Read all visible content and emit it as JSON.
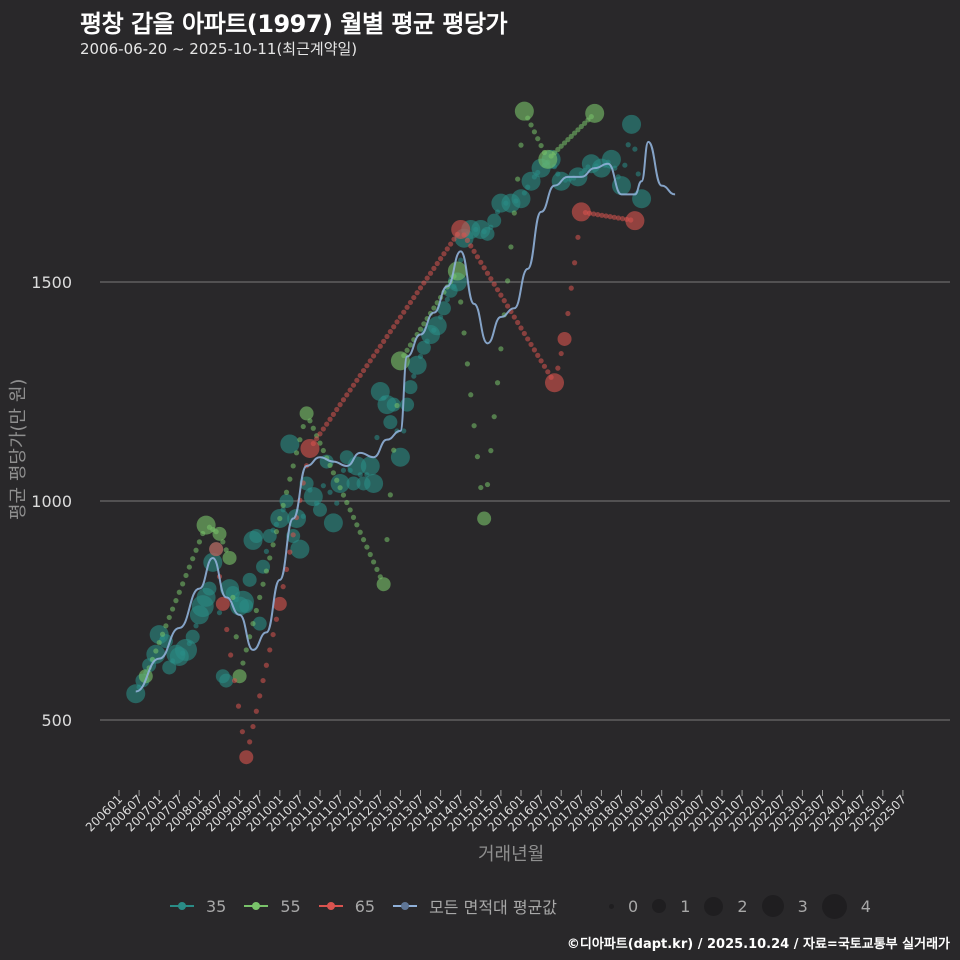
{
  "header": {
    "title": "평창 갑을 아파트(1997) 월별 평균 평당가",
    "subtitle": "2006-06-20 ~ 2025-10-11(최근계약일)"
  },
  "axes": {
    "ylabel": "평균 평당가(만 원)",
    "xlabel": "거래년월"
  },
  "legend": {
    "series": [
      {
        "label": "35",
        "color": "#2a8c86"
      },
      {
        "label": "55",
        "color": "#79c36a"
      },
      {
        "label": "65",
        "color": "#d9534f"
      },
      {
        "label": "모든 면적대 평균값",
        "color": "#8fb0d8"
      }
    ],
    "sizes": [
      {
        "label": "0",
        "d": 6
      },
      {
        "label": "1",
        "d": 14
      },
      {
        "label": "2",
        "d": 19
      },
      {
        "label": "3",
        "d": 22
      },
      {
        "label": "4",
        "d": 25
      }
    ]
  },
  "credit": "©디아파트(dapt.kr) / 2025.10.24 / 자료=국토교통부 실거래가",
  "chart_data": {
    "type": "scatter",
    "title": "평창 갑을 아파트(1997) 월별 평균 평당가",
    "subtitle": "2006-06-20 ~ 2025-10-11(최근계약일)",
    "xlabel": "거래년월",
    "ylabel": "평균 평당가(만 원)",
    "x_ticks": [
      "200601",
      "200607",
      "200701",
      "200707",
      "200801",
      "200807",
      "200901",
      "200907",
      "201001",
      "201007",
      "201101",
      "201107",
      "201201",
      "201207",
      "201301",
      "201307",
      "201401",
      "201407",
      "201501",
      "201507",
      "201601",
      "201607",
      "201701",
      "201707",
      "201801",
      "201807",
      "201901",
      "201907",
      "202001",
      "202007",
      "202101",
      "202107",
      "202201",
      "202207",
      "202301",
      "202307",
      "202401",
      "202407",
      "202501",
      "202507"
    ],
    "y_ticks": [
      500,
      1000,
      1500
    ],
    "ylim": [
      340,
      1900
    ],
    "grid": "horizontal",
    "legend_position": "bottom",
    "series": [
      {
        "name": "35",
        "color": "#2a8c86",
        "points": [
          [
            "2006-06",
            560,
            2
          ],
          [
            "2006-08",
            590,
            1
          ],
          [
            "2006-10",
            625,
            1
          ],
          [
            "2006-12",
            650,
            2
          ],
          [
            "2007-01",
            695,
            2
          ],
          [
            "2007-03",
            680,
            1
          ],
          [
            "2007-04",
            620,
            1
          ],
          [
            "2007-06",
            650,
            2
          ],
          [
            "2007-07",
            645,
            2
          ],
          [
            "2007-09",
            660,
            3
          ],
          [
            "2007-11",
            690,
            1
          ],
          [
            "2008-01",
            740,
            2
          ],
          [
            "2008-02",
            760,
            3
          ],
          [
            "2008-03",
            780,
            2
          ],
          [
            "2008-04",
            800,
            1
          ],
          [
            "2008-05",
            860,
            2
          ],
          [
            "2008-06",
            890,
            1
          ],
          [
            "2008-08",
            600,
            1
          ],
          [
            "2008-09",
            590,
            1
          ],
          [
            "2008-10",
            800,
            2
          ],
          [
            "2008-11",
            790,
            1
          ],
          [
            "2009-01",
            760,
            2
          ],
          [
            "2009-02",
            770,
            3
          ],
          [
            "2009-03",
            760,
            1
          ],
          [
            "2009-04",
            820,
            1
          ],
          [
            "2009-05",
            910,
            2
          ],
          [
            "2009-06",
            920,
            1
          ],
          [
            "2009-07",
            720,
            1
          ],
          [
            "2009-08",
            850,
            1
          ],
          [
            "2009-10",
            920,
            1
          ],
          [
            "2010-01",
            960,
            2
          ],
          [
            "2010-03",
            1000,
            1
          ],
          [
            "2010-04",
            1130,
            2
          ],
          [
            "2010-05",
            920,
            1
          ],
          [
            "2010-06",
            960,
            2
          ],
          [
            "2010-07",
            890,
            2
          ],
          [
            "2010-09",
            1040,
            1
          ],
          [
            "2010-11",
            1010,
            2
          ],
          [
            "2011-01",
            980,
            1
          ],
          [
            "2011-03",
            1090,
            1
          ],
          [
            "2011-05",
            950,
            2
          ],
          [
            "2011-07",
            1040,
            2
          ],
          [
            "2011-09",
            1100,
            1
          ],
          [
            "2011-11",
            1040,
            1
          ],
          [
            "2011-12",
            1080,
            2
          ],
          [
            "2012-02",
            1040,
            1
          ],
          [
            "2012-04",
            1080,
            2
          ],
          [
            "2012-05",
            1040,
            2
          ],
          [
            "2012-07",
            1250,
            2
          ],
          [
            "2012-09",
            1220,
            2
          ],
          [
            "2012-10",
            1180,
            1
          ],
          [
            "2012-11",
            1220,
            1
          ],
          [
            "2013-01",
            1100,
            2
          ],
          [
            "2013-03",
            1220,
            1
          ],
          [
            "2013-04",
            1260,
            1
          ],
          [
            "2013-06",
            1310,
            2
          ],
          [
            "2013-08",
            1350,
            1
          ],
          [
            "2013-10",
            1380,
            2
          ],
          [
            "2013-12",
            1400,
            2
          ],
          [
            "2014-02",
            1440,
            1
          ],
          [
            "2014-04",
            1480,
            1
          ],
          [
            "2014-06",
            1500,
            2
          ],
          [
            "2014-08",
            1600,
            2
          ],
          [
            "2014-10",
            1620,
            2
          ],
          [
            "2015-01",
            1620,
            2
          ],
          [
            "2015-03",
            1610,
            1
          ],
          [
            "2015-05",
            1640,
            1
          ],
          [
            "2015-07",
            1680,
            2
          ],
          [
            "2015-10",
            1680,
            2
          ],
          [
            "2016-01",
            1690,
            2
          ],
          [
            "2016-04",
            1730,
            2
          ],
          [
            "2016-07",
            1760,
            2
          ],
          [
            "2016-10",
            1780,
            2
          ],
          [
            "2017-01",
            1730,
            2
          ],
          [
            "2017-06",
            1740,
            2
          ],
          [
            "2017-10",
            1770,
            2
          ],
          [
            "2018-01",
            1760,
            2
          ],
          [
            "2018-04",
            1780,
            2
          ],
          [
            "2018-07",
            1720,
            2
          ],
          [
            "2018-10",
            1860,
            2
          ],
          [
            "2019-01",
            1690,
            2
          ]
        ]
      },
      {
        "name": "55",
        "color": "#79c36a",
        "points": [
          [
            "2006-09",
            600,
            1
          ],
          [
            "2008-03",
            945,
            2
          ],
          [
            "2008-07",
            925,
            1
          ],
          [
            "2008-10",
            870,
            1
          ],
          [
            "2009-01",
            600,
            1
          ],
          [
            "2010-09",
            1200,
            1
          ],
          [
            "2012-08",
            810,
            1
          ],
          [
            "2013-01",
            1320,
            2
          ],
          [
            "2014-06",
            1525,
            2
          ],
          [
            "2015-02",
            960,
            1
          ],
          [
            "2016-02",
            1890,
            2
          ],
          [
            "2016-09",
            1780,
            2
          ],
          [
            "2017-11",
            1885,
            2
          ]
        ]
      },
      {
        "name": "65",
        "color": "#d9534f",
        "points": [
          [
            "2008-06",
            890,
            1
          ],
          [
            "2008-08",
            765,
            1
          ],
          [
            "2009-03",
            415,
            1
          ],
          [
            "2010-01",
            765,
            1
          ],
          [
            "2010-10",
            1120,
            2
          ],
          [
            "2014-07",
            1620,
            2
          ],
          [
            "2016-11",
            1270,
            2
          ],
          [
            "2017-02",
            1370,
            1
          ],
          [
            "2017-07",
            1660,
            2
          ],
          [
            "2018-11",
            1640,
            2
          ]
        ]
      },
      {
        "name": "모든 면적대 평균값",
        "color": "#8fb0d8",
        "type": "line",
        "points": [
          [
            "2006-06",
            565
          ],
          [
            "2007-01",
            640
          ],
          [
            "2007-07",
            710
          ],
          [
            "2008-01",
            800
          ],
          [
            "2008-05",
            870
          ],
          [
            "2008-09",
            780
          ],
          [
            "2009-01",
            740
          ],
          [
            "2009-05",
            660
          ],
          [
            "2009-09",
            700
          ],
          [
            "2010-01",
            820
          ],
          [
            "2010-05",
            960
          ],
          [
            "2010-09",
            1080
          ],
          [
            "2011-01",
            1100
          ],
          [
            "2011-05",
            1090
          ],
          [
            "2011-09",
            1080
          ],
          [
            "2012-01",
            1110
          ],
          [
            "2012-05",
            1100
          ],
          [
            "2012-09",
            1140
          ],
          [
            "2013-01",
            1160
          ],
          [
            "2013-03",
            1330
          ],
          [
            "2013-07",
            1380
          ],
          [
            "2013-11",
            1430
          ],
          [
            "2014-03",
            1490
          ],
          [
            "2014-07",
            1570
          ],
          [
            "2014-11",
            1450
          ],
          [
            "2015-03",
            1360
          ],
          [
            "2015-07",
            1420
          ],
          [
            "2015-11",
            1440
          ],
          [
            "2016-03",
            1530
          ],
          [
            "2016-07",
            1660
          ],
          [
            "2016-11",
            1720
          ],
          [
            "2017-03",
            1740
          ],
          [
            "2017-07",
            1740
          ],
          [
            "2017-11",
            1760
          ],
          [
            "2018-03",
            1770
          ],
          [
            "2018-07",
            1700
          ],
          [
            "2018-11",
            1700
          ],
          [
            "2019-01",
            1730
          ],
          [
            "2019-03",
            1820
          ],
          [
            "2019-07",
            1720
          ],
          [
            "2019-11",
            1700
          ]
        ]
      }
    ]
  }
}
